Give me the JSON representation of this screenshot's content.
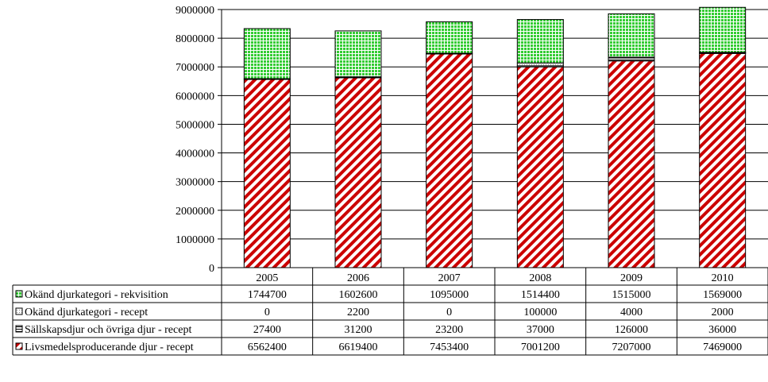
{
  "chart_data": {
    "type": "bar",
    "stacked": true,
    "title": "",
    "xlabel": "",
    "ylabel": "",
    "categories": [
      "2005",
      "2006",
      "2007",
      "2008",
      "2009",
      "2010"
    ],
    "ylim": [
      0,
      9000000
    ],
    "yticks": [
      "0",
      "1000000",
      "2000000",
      "3000000",
      "4000000",
      "5000000",
      "6000000",
      "7000000",
      "8000000",
      "9000000"
    ],
    "grid": true,
    "legend_placement": "data table rows below chart",
    "series": [
      {
        "name": "Okänd djurkategori - rekvisition",
        "pattern": "green-grid",
        "color": "#33cc33",
        "values": [
          1744700,
          1602600,
          1095000,
          1514400,
          1515000,
          1569000
        ]
      },
      {
        "name": "Okänd djurkategori - recept",
        "pattern": "white-dots",
        "color": "#ffffff",
        "values": [
          0,
          2200,
          0,
          100000,
          4000,
          2000
        ]
      },
      {
        "name": "Sällskapsdjur och övriga djur - recept",
        "pattern": "horizontal-lines",
        "color": "#ffffff",
        "values": [
          27400,
          31200,
          23200,
          37000,
          126000,
          36000
        ]
      },
      {
        "name": "Livsmedelsproducerande djur - recept",
        "pattern": "red-diagonal",
        "color": "#cc0000",
        "values": [
          6562400,
          6619400,
          7453400,
          7001200,
          7207000,
          7469000
        ]
      }
    ],
    "table_display": [
      [
        "1744700",
        "1602600",
        "1095000",
        "1514400",
        "1515000",
        "1569000"
      ],
      [
        "0",
        "2200",
        "0",
        "100000",
        "4000",
        "2000"
      ],
      [
        "27400",
        "31200",
        "23200",
        "37000",
        "126000",
        "36000"
      ],
      [
        "6562400",
        "6619400",
        "7453400",
        "7001200",
        "7207000",
        "7469000"
      ]
    ]
  }
}
